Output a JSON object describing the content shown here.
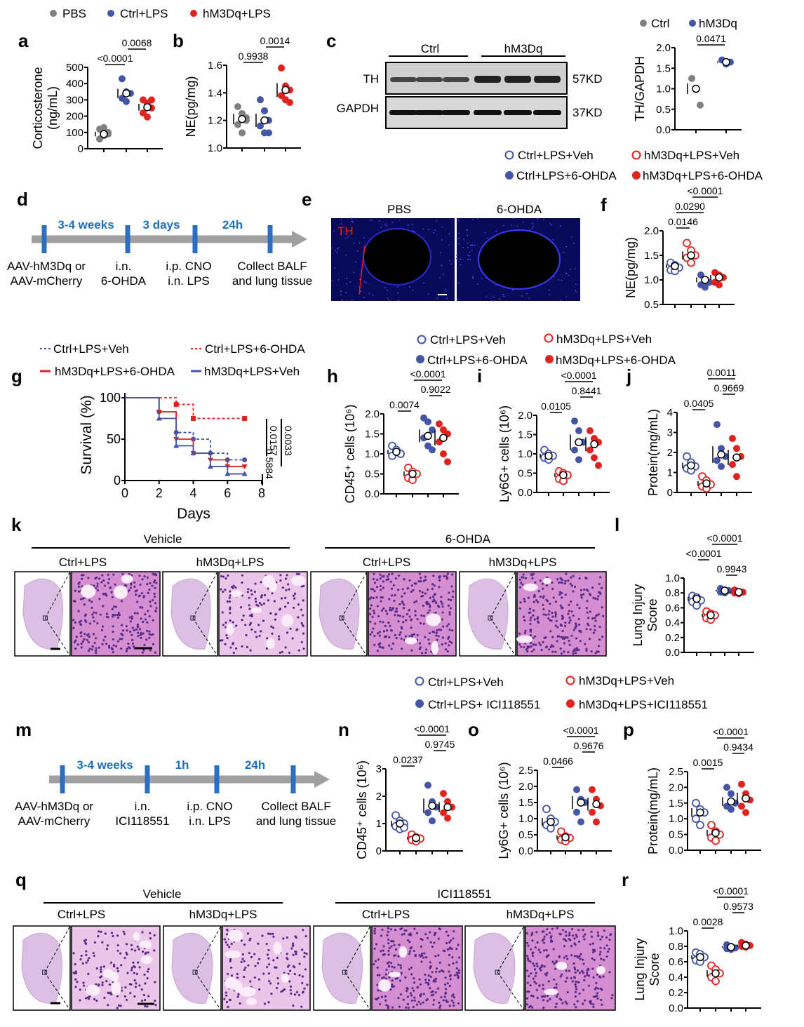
{
  "colors": {
    "pbs": "#808080",
    "ctrl": "#4455a6",
    "hm3dq": "#e0231f",
    "timeline": "#1f6fbf"
  },
  "panel_letters": {
    "a": "a",
    "b": "b",
    "c": "c",
    "d": "d",
    "e": "e",
    "f": "f",
    "g": "g",
    "h": "h",
    "i": "i",
    "j": "j",
    "k": "k",
    "l": "l",
    "m": "m",
    "n": "n",
    "o": "o",
    "p": "p",
    "q": "q",
    "r": "r"
  },
  "legend_top": {
    "pbs": "PBS",
    "ctrl": "Ctrl+LPS",
    "hm3dq": "hM3Dq+LPS"
  },
  "legend_c": {
    "ctrl": "Ctrl",
    "hm3dq": "hM3Dq"
  },
  "legend_f": {
    "a": "Ctrl+LPS+Veh",
    "b": "hM3Dq+LPS+Veh",
    "c": "Ctrl+LPS+6-OHDA",
    "d": "hM3Dq+LPS+6-OHDA"
  },
  "legend_hij": {
    "a": "Ctrl+LPS+Veh",
    "b": "hM3Dq+LPS+Veh",
    "c": "Ctrl+LPS+6-OHDA",
    "d": "hM3Dq+LPS+6-OHDA"
  },
  "legend_nop": {
    "a": "Ctrl+LPS+Veh",
    "b": "hM3Dq+LPS+Veh",
    "c": "Ctrl+LPS+ ICI118551",
    "d": "hM3Dq+LPS+ICI118551"
  },
  "blot": {
    "group1": "Ctrl",
    "group2": "hM3Dq",
    "row1": "TH",
    "row2": "GAPDH",
    "size1": "57KD",
    "size2": "37KD"
  },
  "timeline_d": {
    "intervals": [
      "3-4 weeks",
      "3 days",
      "24h"
    ],
    "steps": [
      "AAV-hM3Dq or\nAAV-mCherry",
      "i.n.\n6-OHDA",
      "i.p. CNO\ni.n. LPS",
      "Collect BALF\nand lung tissue"
    ]
  },
  "timeline_m": {
    "intervals": [
      "3-4 weeks",
      "1h",
      "24h"
    ],
    "steps": [
      "AAV-hM3Dq or\nAAV-mCherry",
      "i.n.\nICI118551",
      "i.p. CNO\ni.n. LPS",
      "Collect BALF\nand lung tissue"
    ]
  },
  "panel_e": {
    "left": "PBS",
    "right": "6-OHDA",
    "stain": "TH"
  },
  "panel_k": {
    "group1": "Vehicle",
    "group2": "6-OHDA",
    "sub": [
      "Ctrl+LPS",
      "hM3Dq+LPS",
      "Ctrl+LPS",
      "hM3Dq+LPS"
    ]
  },
  "panel_q": {
    "group1": "Vehicle",
    "group2": "ICI118551",
    "sub": [
      "Ctrl+LPS",
      "hM3Dq+LPS",
      "Ctrl+LPS",
      "hM3Dq+LPS"
    ]
  },
  "chart_data": [
    {
      "id": "a",
      "type": "scatter",
      "ylabel": "Corticosterone\n(ng/mL)",
      "ylim": [
        0,
        500
      ],
      "ticks": [
        0,
        100,
        200,
        300,
        400,
        500
      ],
      "groups": [
        {
          "style": "pbs",
          "points": [
            60,
            80,
            100,
            120,
            130,
            90
          ],
          "mean": 90
        },
        {
          "style": "ctrl",
          "points": [
            430,
            350,
            340,
            310,
            290
          ],
          "mean": 340
        },
        {
          "style": "hm3dq",
          "points": [
            300,
            280,
            250,
            220,
            195,
            300
          ],
          "mean": 255
        }
      ],
      "pvalues": [
        {
          "pair": [
            0,
            1
          ],
          "text": "<0.0001"
        },
        {
          "pair": [
            1,
            2
          ],
          "text": "0.0068"
        }
      ]
    },
    {
      "id": "b",
      "type": "scatter",
      "ylabel": "NE(pg/mg)",
      "ylim": [
        1.0,
        1.6
      ],
      "ticks": [
        "1.0",
        "1.2",
        "1.4",
        "1.6"
      ],
      "groups": [
        {
          "style": "pbs",
          "points": [
            1.3,
            1.25,
            1.2,
            1.17,
            1.11,
            1.22
          ],
          "mean": 1.21
        },
        {
          "style": "ctrl",
          "points": [
            1.35,
            1.27,
            1.2,
            1.16,
            1.11,
            1.11
          ],
          "mean": 1.2
        },
        {
          "style": "hm3dq",
          "points": [
            1.58,
            1.45,
            1.42,
            1.38,
            1.35,
            1.33
          ],
          "mean": 1.42
        }
      ],
      "pvalues": [
        {
          "pair": [
            0,
            1
          ],
          "text": "0.9938"
        },
        {
          "pair": [
            1,
            2
          ],
          "text": "0.0014"
        }
      ]
    },
    {
      "id": "c",
      "type": "scatter",
      "ylabel": "TH/GAPDH",
      "ylim": [
        0,
        2.0
      ],
      "ticks": [
        "0.0",
        "0.5",
        "1.0",
        "1.5",
        "2.0"
      ],
      "groups": [
        {
          "style": "pbs",
          "points": [
            1.25,
            1.0,
            0.6
          ],
          "mean": 1.0
        },
        {
          "style": "ctrl",
          "points": [
            1.7,
            1.6,
            1.65
          ],
          "mean": 1.65
        }
      ],
      "pvalues": [
        {
          "pair": [
            0,
            1
          ],
          "text": "0.0471"
        }
      ]
    },
    {
      "id": "f",
      "type": "scatter",
      "ylabel": "NE(pg/mg)",
      "ylim": [
        0.5,
        2.0
      ],
      "ticks": [
        "0.5",
        "1.0",
        "1.5",
        "2.0"
      ],
      "groups": [
        {
          "style": "ctrl-open",
          "points": [
            1.35,
            1.3,
            1.25,
            1.2,
            1.18
          ],
          "mean": 1.28
        },
        {
          "style": "hm3dq-open",
          "points": [
            1.75,
            1.6,
            1.5,
            1.45,
            1.35
          ],
          "mean": 1.5
        },
        {
          "style": "ctrl",
          "points": [
            1.1,
            1.0,
            0.95,
            0.9,
            0.85
          ],
          "mean": 1.0
        },
        {
          "style": "hm3dq",
          "points": [
            1.15,
            1.1,
            1.05,
            0.95,
            0.9
          ],
          "mean": 1.05
        }
      ],
      "pvalues": [
        {
          "pair": [
            0,
            1
          ],
          "text": "0.0146"
        },
        {
          "pair": [
            0,
            2
          ],
          "text": "0.0290"
        },
        {
          "pair": [
            1,
            3
          ],
          "text": "<0.0001"
        }
      ]
    },
    {
      "id": "g",
      "type": "line",
      "title": "",
      "xlabel": "Days",
      "ylabel": "Survival (%)",
      "xlim": [
        0,
        8
      ],
      "ylim": [
        0,
        100
      ],
      "xticks": [
        0,
        2,
        4,
        6,
        8
      ],
      "yticks": [
        0,
        50,
        100
      ],
      "series": [
        {
          "name": "Ctrl+LPS+Veh",
          "style": "ctrl-dash",
          "x": [
            0,
            2,
            3,
            4,
            5,
            6,
            7
          ],
          "y": [
            100,
            83,
            58,
            50,
            33,
            25,
            25
          ]
        },
        {
          "name": "Ctrl+LPS+6-OHDA",
          "style": "hm3dq-dash",
          "x": [
            0,
            3,
            4,
            7
          ],
          "y": [
            100,
            92,
            75,
            75
          ]
        },
        {
          "name": "hM3Dq+LPS+6-OHDA",
          "style": "hm3dq-solid",
          "x": [
            0,
            2,
            3,
            4,
            5,
            6,
            7
          ],
          "y": [
            100,
            83,
            50,
            33,
            25,
            17,
            17
          ]
        },
        {
          "name": "hM3Dq+LPS+Veh",
          "style": "ctrl-solid",
          "x": [
            0,
            2,
            3,
            4,
            5,
            6,
            7
          ],
          "y": [
            100,
            75,
            42,
            33,
            17,
            8,
            8
          ]
        }
      ],
      "pvalues": [
        "0.0157",
        "0.0033",
        "0.5884"
      ]
    },
    {
      "id": "h",
      "type": "scatter",
      "ylabel": "CD45⁺ cells (10⁶)",
      "ylim": [
        0,
        2.0
      ],
      "ticks": [
        "0.0",
        "0.5",
        "1.0",
        "1.5",
        "2.0"
      ],
      "groups": [
        {
          "style": "ctrl-open",
          "points": [
            1.2,
            1.1,
            1.0,
            0.95,
            1.05,
            1.0
          ],
          "mean": 1.05
        },
        {
          "style": "hm3dq-open",
          "points": [
            0.65,
            0.55,
            0.5,
            0.4,
            0.35
          ],
          "mean": 0.5
        },
        {
          "style": "ctrl",
          "points": [
            1.9,
            1.8,
            1.6,
            1.4,
            1.2,
            1.1
          ],
          "mean": 1.45
        },
        {
          "style": "hm3dq",
          "points": [
            1.75,
            1.6,
            1.5,
            1.3,
            1.0,
            0.8
          ],
          "mean": 1.4
        }
      ],
      "pvalues": [
        {
          "pair": [
            0,
            1
          ],
          "text": "0.0074"
        },
        {
          "pair": [
            2,
            3
          ],
          "text": "0.9022"
        },
        {
          "pair": [
            1,
            3
          ],
          "text": "<0.0001"
        }
      ]
    },
    {
      "id": "i",
      "type": "scatter",
      "ylabel": "Ly6G+ cells (10⁶)",
      "ylim": [
        0,
        2.0
      ],
      "ticks": [
        "0.0",
        "0.5",
        "1.0",
        "1.5",
        "2.0"
      ],
      "groups": [
        {
          "style": "ctrl-open",
          "points": [
            1.1,
            1.0,
            0.95,
            0.9,
            0.85
          ],
          "mean": 0.95
        },
        {
          "style": "hm3dq-open",
          "points": [
            0.55,
            0.5,
            0.45,
            0.35,
            0.3
          ],
          "mean": 0.45
        },
        {
          "style": "ctrl",
          "points": [
            1.85,
            1.6,
            1.3,
            1.1,
            0.85
          ],
          "mean": 1.3
        },
        {
          "style": "hm3dq",
          "points": [
            1.6,
            1.4,
            1.3,
            1.1,
            0.9,
            0.7
          ],
          "mean": 1.25
        }
      ],
      "pvalues": [
        {
          "pair": [
            0,
            1
          ],
          "text": "0.0105"
        },
        {
          "pair": [
            2,
            3
          ],
          "text": "0.8441"
        },
        {
          "pair": [
            1,
            3
          ],
          "text": "<0.0001"
        }
      ]
    },
    {
      "id": "j",
      "type": "scatter",
      "ylabel": "Protein(mg/mL)",
      "ylim": [
        0,
        4
      ],
      "ticks": [
        "0",
        "1",
        "2",
        "3",
        "4"
      ],
      "groups": [
        {
          "style": "ctrl-open",
          "points": [
            1.8,
            1.5,
            1.3,
            1.2,
            1.1
          ],
          "mean": 1.35
        },
        {
          "style": "hm3dq-open",
          "points": [
            0.8,
            0.6,
            0.4,
            0.3,
            0.2
          ],
          "mean": 0.45
        },
        {
          "style": "ctrl",
          "points": [
            3.4,
            2.2,
            1.8,
            1.6,
            1.3
          ],
          "mean": 1.9
        },
        {
          "style": "hm3dq",
          "points": [
            2.7,
            2.2,
            1.8,
            1.4,
            0.8
          ],
          "mean": 1.75
        }
      ],
      "pvalues": [
        {
          "pair": [
            0,
            1
          ],
          "text": "0.0405"
        },
        {
          "pair": [
            2,
            3
          ],
          "text": "0.9669"
        },
        {
          "pair": [
            1,
            3
          ],
          "text": "0.0011"
        }
      ]
    },
    {
      "id": "l",
      "type": "scatter",
      "ylabel": "Lung Injury\nScore",
      "ylim": [
        0,
        1.0
      ],
      "ticks": [
        "0.0",
        "0.2",
        "0.4",
        "0.6",
        "0.8",
        "1.0"
      ],
      "groups": [
        {
          "style": "ctrl-open",
          "points": [
            0.76,
            0.74,
            0.7,
            0.68,
            0.63
          ],
          "mean": 0.72
        },
        {
          "style": "hm3dq-open",
          "points": [
            0.55,
            0.52,
            0.5,
            0.46,
            0.44
          ],
          "mean": 0.5
        },
        {
          "style": "ctrl",
          "points": [
            0.86,
            0.84,
            0.83,
            0.81,
            0.8
          ],
          "mean": 0.83
        },
        {
          "style": "hm3dq",
          "points": [
            0.84,
            0.82,
            0.81,
            0.8,
            0.79
          ],
          "mean": 0.81
        }
      ],
      "pvalues": [
        {
          "pair": [
            2,
            3
          ],
          "text": "0.9943"
        },
        {
          "pair": [
            0,
            1
          ],
          "text": "<0.0001"
        },
        {
          "pair": [
            1,
            3
          ],
          "text": "<0.0001"
        }
      ]
    },
    {
      "id": "n",
      "type": "scatter",
      "ylabel": "CD45⁺ cells (10⁶)",
      "ylim": [
        0,
        3
      ],
      "ticks": [
        "0",
        "1",
        "2",
        "3"
      ],
      "groups": [
        {
          "style": "ctrl-open",
          "points": [
            1.3,
            1.1,
            1.0,
            0.9,
            0.8,
            0.85
          ],
          "mean": 1.0
        },
        {
          "style": "hm3dq-open",
          "points": [
            0.6,
            0.5,
            0.45,
            0.4,
            0.35
          ],
          "mean": 0.47
        },
        {
          "style": "ctrl",
          "points": [
            2.4,
            1.8,
            1.6,
            1.4,
            1.1
          ],
          "mean": 1.65
        },
        {
          "style": "hm3dq",
          "points": [
            2.1,
            1.8,
            1.6,
            1.4,
            1.2
          ],
          "mean": 1.6
        }
      ],
      "pvalues": [
        {
          "pair": [
            0,
            1
          ],
          "text": "0.0237"
        },
        {
          "pair": [
            2,
            3
          ],
          "text": "0.9745"
        },
        {
          "pair": [
            1,
            3
          ],
          "text": "<0.0001"
        }
      ]
    },
    {
      "id": "o",
      "type": "scatter",
      "ylabel": "Ly6G+ cells (10⁶)",
      "ylim": [
        0,
        2.5
      ],
      "ticks": [
        "0.0",
        "0.5",
        "1.0",
        "1.5",
        "2.0",
        "2.5"
      ],
      "groups": [
        {
          "style": "ctrl-open",
          "points": [
            1.3,
            1.0,
            0.9,
            0.8,
            0.7
          ],
          "mean": 0.9
        },
        {
          "style": "hm3dq-open",
          "points": [
            0.6,
            0.45,
            0.4,
            0.35,
            0.3
          ],
          "mean": 0.42
        },
        {
          "style": "ctrl",
          "points": [
            1.9,
            1.6,
            1.5,
            1.2,
            0.9
          ],
          "mean": 1.5
        },
        {
          "style": "hm3dq",
          "points": [
            1.9,
            1.6,
            1.4,
            1.2,
            0.9
          ],
          "mean": 1.45
        }
      ],
      "pvalues": [
        {
          "pair": [
            0,
            1
          ],
          "text": "0.0466"
        },
        {
          "pair": [
            2,
            3
          ],
          "text": "0.9676"
        },
        {
          "pair": [
            1,
            3
          ],
          "text": "<0.0001"
        }
      ]
    },
    {
      "id": "p",
      "type": "scatter",
      "ylabel": "Protein(mg/mL)",
      "ylim": [
        0,
        2.5
      ],
      "ticks": [
        "0.0",
        "0.5",
        "1.0",
        "1.5",
        "2.0",
        "2.5"
      ],
      "groups": [
        {
          "style": "ctrl-open",
          "points": [
            1.5,
            1.3,
            1.2,
            1.0,
            0.8
          ],
          "mean": 1.2
        },
        {
          "style": "hm3dq-open",
          "points": [
            0.8,
            0.6,
            0.5,
            0.4,
            0.3
          ],
          "mean": 0.55
        },
        {
          "style": "ctrl",
          "points": [
            2.0,
            1.8,
            1.5,
            1.4,
            1.3
          ],
          "mean": 1.55
        },
        {
          "style": "hm3dq",
          "points": [
            2.1,
            1.8,
            1.6,
            1.4,
            1.2
          ],
          "mean": 1.65
        }
      ],
      "pvalues": [
        {
          "pair": [
            0,
            1
          ],
          "text": "0.0015"
        },
        {
          "pair": [
            2,
            3
          ],
          "text": "0.9434"
        },
        {
          "pair": [
            1,
            3
          ],
          "text": "<0.0001"
        }
      ]
    },
    {
      "id": "r",
      "type": "scatter",
      "ylabel": "Lung Injury\nScore",
      "ylim": [
        0,
        1.0
      ],
      "ticks": [
        "0.0",
        "0.2",
        "0.4",
        "0.6",
        "0.8",
        "1.0"
      ],
      "groups": [
        {
          "style": "ctrl-open",
          "points": [
            0.72,
            0.7,
            0.66,
            0.62,
            0.6
          ],
          "mean": 0.66
        },
        {
          "style": "hm3dq-open",
          "points": [
            0.55,
            0.5,
            0.45,
            0.4,
            0.35
          ],
          "mean": 0.45
        },
        {
          "style": "ctrl",
          "points": [
            0.82,
            0.8,
            0.78,
            0.77,
            0.76
          ],
          "mean": 0.79
        },
        {
          "style": "hm3dq",
          "points": [
            0.85,
            0.83,
            0.81,
            0.8,
            0.79
          ],
          "mean": 0.81
        }
      ],
      "pvalues": [
        {
          "pair": [
            0,
            1
          ],
          "text": "0.0028"
        },
        {
          "pair": [
            2,
            3
          ],
          "text": "0.9573"
        },
        {
          "pair": [
            1,
            3
          ],
          "text": "<0.0001"
        }
      ]
    }
  ]
}
